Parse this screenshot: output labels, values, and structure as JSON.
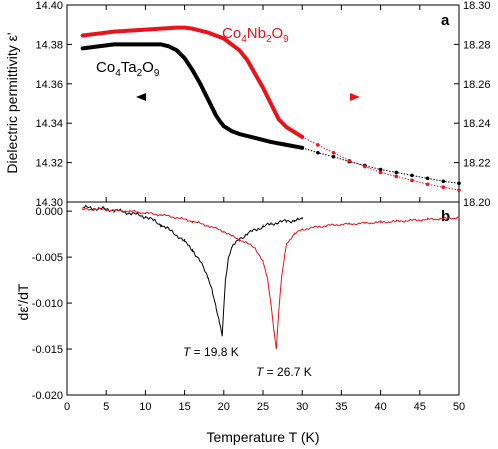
{
  "chart_data": [
    {
      "panel": "a",
      "type": "line",
      "ylabel": "Dielectric permittivity ε'",
      "xlim": [
        0,
        50
      ],
      "ylim_left": [
        14.3,
        14.4
      ],
      "ylim_right": [
        18.2,
        18.3
      ],
      "y_ticks_left": [
        "14.30",
        "14.32",
        "14.34",
        "14.36",
        "14.38",
        "14.40"
      ],
      "y_ticks_right": [
        "18.20",
        "18.22",
        "18.24",
        "18.26",
        "18.28",
        "18.30"
      ],
      "series": [
        {
          "name": "Co4Ta2O9",
          "name_parts": {
            "a": "Co",
            "b": "4",
            "c": "Ta",
            "d": "2",
            "e": "O",
            "f": "9"
          },
          "axis": "left",
          "color": "#000000",
          "arrow_direction": "left",
          "x": [
            2,
            4,
            6,
            8,
            10,
            12,
            13,
            14,
            15,
            16,
            17,
            18,
            19,
            19.5,
            20,
            21,
            22,
            24,
            26,
            28,
            30,
            32,
            34,
            36,
            38,
            40,
            42,
            44,
            46,
            48,
            50
          ],
          "y": [
            14.378,
            14.379,
            14.38,
            14.38,
            14.38,
            14.38,
            14.379,
            14.377,
            14.373,
            14.367,
            14.36,
            14.352,
            14.344,
            14.341,
            14.3385,
            14.336,
            14.3345,
            14.3325,
            14.3305,
            14.329,
            14.3275,
            14.325,
            14.323,
            14.3205,
            14.3185,
            14.3165,
            14.315,
            14.3135,
            14.312,
            14.3105,
            14.3095
          ]
        },
        {
          "name": "Co4Nb2O9",
          "name_parts": {
            "a": "Co",
            "b": "4",
            "c": "Nb",
            "d": "2",
            "e": "O",
            "f": "9"
          },
          "axis": "right",
          "color": "#e8131b",
          "arrow_direction": "right",
          "x": [
            2,
            4,
            6,
            8,
            10,
            12,
            14,
            15,
            16,
            18,
            20,
            22,
            23,
            24,
            25,
            26,
            26.5,
            27,
            28,
            30,
            32,
            34,
            36,
            38,
            40,
            42,
            44,
            46,
            48,
            50
          ],
          "y": [
            18.2845,
            18.2855,
            18.2865,
            18.287,
            18.2875,
            18.288,
            18.2885,
            18.2885,
            18.288,
            18.286,
            18.283,
            18.277,
            18.272,
            18.265,
            18.258,
            18.25,
            18.246,
            18.242,
            18.238,
            18.233,
            18.229,
            18.225,
            18.221,
            18.218,
            18.215,
            18.213,
            18.211,
            18.209,
            18.2075,
            18.206
          ]
        }
      ]
    },
    {
      "panel": "b",
      "type": "line",
      "xlabel": "Temperature T (K)",
      "ylabel": "dε'/dT",
      "xlim": [
        0,
        50
      ],
      "ylim": [
        -0.02,
        0.001
      ],
      "x_ticks": [
        "0",
        "5",
        "10",
        "15",
        "20",
        "25",
        "30",
        "35",
        "40",
        "45",
        "50"
      ],
      "y_ticks": [
        "0.000",
        "-0.005",
        "-0.010",
        "-0.015",
        "-0.020"
      ],
      "series": [
        {
          "name": "Co4Ta2O9",
          "color": "#000000",
          "x": [
            2,
            4,
            6,
            8,
            10,
            11,
            12,
            13,
            14,
            15,
            16,
            17,
            18,
            18.5,
            19,
            19.4,
            19.8,
            20.2,
            20.6,
            21,
            22,
            23,
            24,
            25,
            26,
            27,
            28,
            29,
            30
          ],
          "y": [
            0.0004,
            0.0003,
            0.0001,
            -0.0002,
            -0.0006,
            -0.001,
            -0.0015,
            -0.002,
            -0.0026,
            -0.0033,
            -0.0042,
            -0.0055,
            -0.0072,
            -0.0085,
            -0.0105,
            -0.012,
            -0.0135,
            -0.0075,
            -0.005,
            -0.004,
            -0.003,
            -0.0025,
            -0.002,
            -0.0017,
            -0.0014,
            -0.0012,
            -0.0011,
            -0.001,
            -0.0009
          ]
        },
        {
          "name": "Co4Nb2O9",
          "color": "#e8131b",
          "x": [
            2,
            4,
            6,
            8,
            10,
            12,
            14,
            16,
            18,
            20,
            21,
            22,
            23,
            24,
            25,
            25.6,
            26.0,
            26.4,
            26.7,
            27.0,
            27.4,
            28,
            29,
            30,
            32,
            34,
            36,
            38,
            40,
            42,
            44,
            46,
            48,
            50
          ],
          "y": [
            0.0002,
            0.0002,
            0.0001,
            0.0,
            -0.0002,
            -0.0004,
            -0.0007,
            -0.0011,
            -0.0016,
            -0.0022,
            -0.0027,
            -0.0031,
            -0.0035,
            -0.004,
            -0.0055,
            -0.0075,
            -0.01,
            -0.013,
            -0.015,
            -0.011,
            -0.007,
            -0.0035,
            -0.0025,
            -0.002,
            -0.0017,
            -0.0015,
            -0.0014,
            -0.0013,
            -0.0012,
            -0.0011,
            -0.001,
            -0.0009,
            -0.0008,
            -0.0007
          ]
        }
      ],
      "annotations": [
        {
          "text": "T = 19.8 K",
          "italic": "T",
          "rest": " = 19.8 K",
          "x": 19.8,
          "y": -0.0157
        },
        {
          "text": "T = 26.7 K",
          "italic": "T",
          "rest": " = 26.7 K",
          "x": 26.7,
          "y": -0.0172
        }
      ]
    }
  ]
}
